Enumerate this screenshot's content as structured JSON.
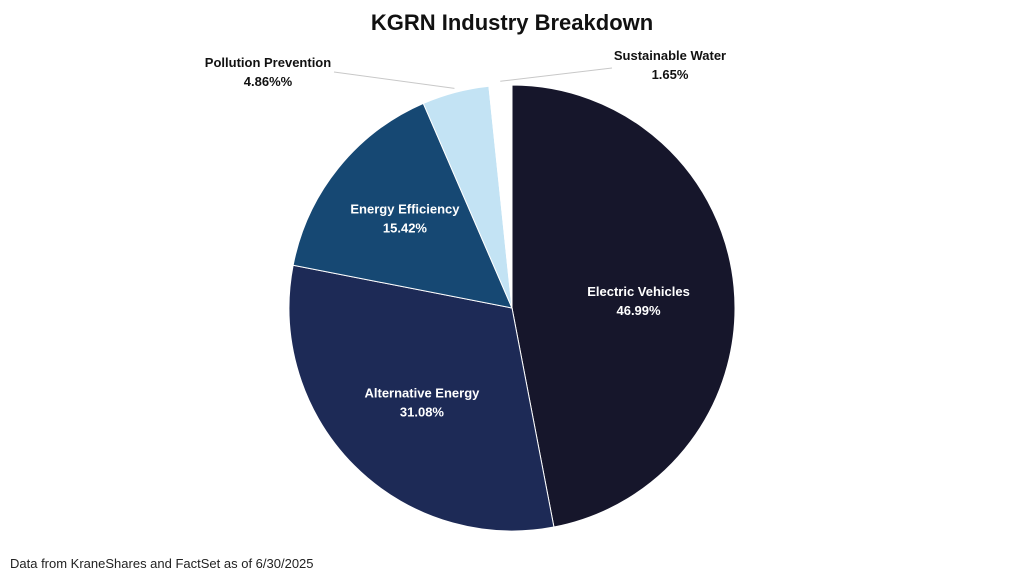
{
  "chart_data": {
    "type": "pie",
    "title": "KGRN Industry Breakdown",
    "slices": [
      {
        "label": "Electric Vehicles",
        "value": 46.99,
        "value_text": "46.99%",
        "color": "#16162b",
        "label_color": "#ffffff",
        "label_placement": "inside"
      },
      {
        "label": "Alternative Energy",
        "value": 31.08,
        "value_text": "31.08%",
        "color": "#1d2a56",
        "label_color": "#ffffff",
        "label_placement": "inside"
      },
      {
        "label": "Energy Efficiency",
        "value": 15.42,
        "value_text": "15.42%",
        "color": "#164873",
        "label_color": "#ffffff",
        "label_placement": "inside"
      },
      {
        "label": "Pollution Prevention",
        "value": 4.86,
        "value_text": "4.86%%",
        "color": "#c3e3f4",
        "label_color": "#111111",
        "label_placement": "outside-left"
      },
      {
        "label": "Sustainable Water",
        "value": 1.65,
        "value_text": "1.65%",
        "color": "#ffffff",
        "label_color": "#111111",
        "label_placement": "outside-right"
      }
    ]
  },
  "footnote": "Data from KraneShares and FactSet as of 6/30/2025"
}
